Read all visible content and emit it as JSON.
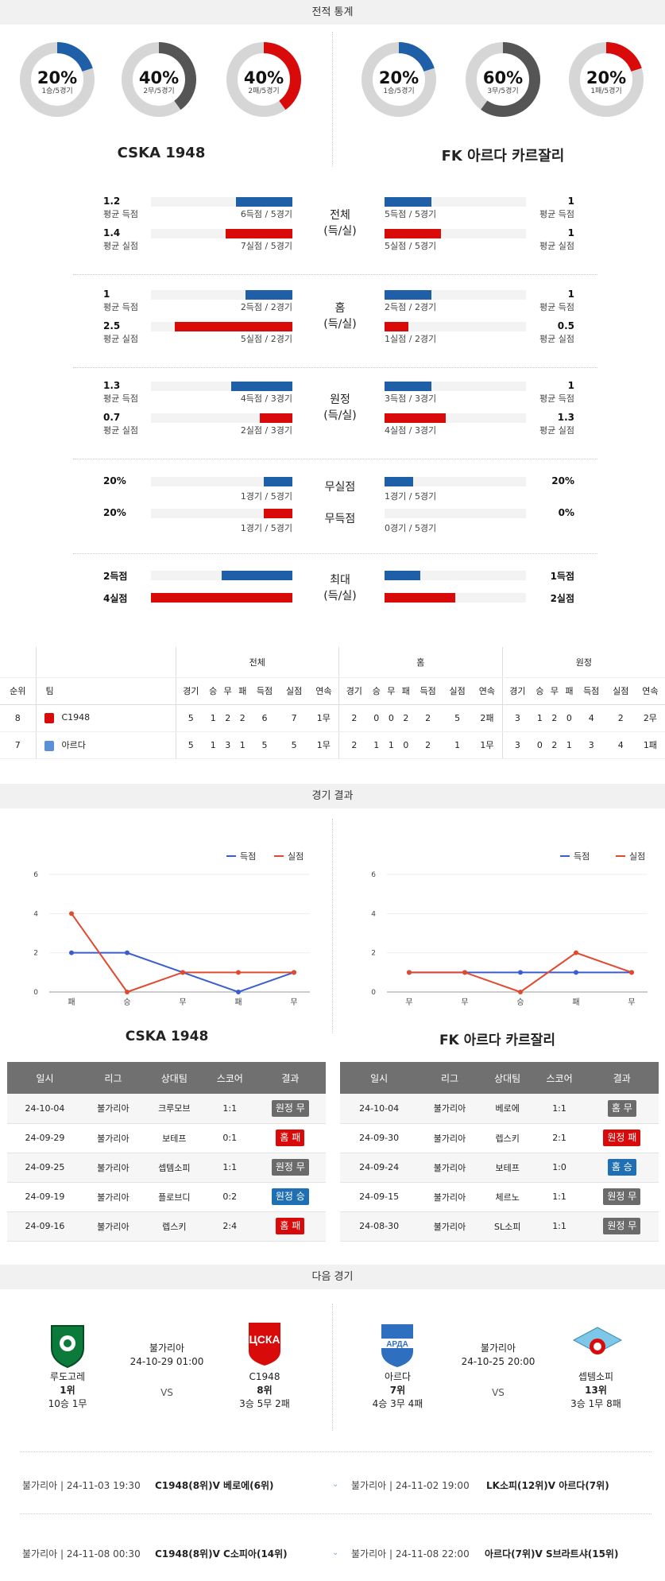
{
  "sections": {
    "stats": "전적 통계",
    "results": "경기 결과",
    "next": "다음 경기"
  },
  "rings": {
    "left": [
      {
        "pct": "20%",
        "sub": "1승/5경기",
        "value": 0.2,
        "color": "#1f5fa8"
      },
      {
        "pct": "40%",
        "sub": "2무/5경기",
        "value": 0.4,
        "color": "#555555"
      },
      {
        "pct": "40%",
        "sub": "2패/5경기",
        "value": 0.4,
        "color": "#d90a0a"
      }
    ],
    "right": [
      {
        "pct": "20%",
        "sub": "1승/5경기",
        "value": 0.2,
        "color": "#1f5fa8"
      },
      {
        "pct": "60%",
        "sub": "3무/5경기",
        "value": 0.6,
        "color": "#555555"
      },
      {
        "pct": "20%",
        "sub": "1패/5경기",
        "value": 0.2,
        "color": "#d90a0a"
      }
    ]
  },
  "teams": {
    "home": "CSKA 1948",
    "away": "FK 아르다 카르잘리"
  },
  "stat_groups": [
    {
      "cat1": "전체",
      "cat2": "(득/실)",
      "rows": [
        {
          "lv": "1.2",
          "ll": "평균 득점",
          "lsub": "6득점 / 5경기",
          "lfrac": 0.4,
          "rv": "1",
          "rl": "평균 득점",
          "rsub": "5득점 / 5경기",
          "rfrac": 0.33,
          "color": "blue"
        },
        {
          "lv": "1.4",
          "ll": "평균 실점",
          "lsub": "7실점 / 5경기",
          "lfrac": 0.47,
          "rv": "1",
          "rl": "평균 실점",
          "rsub": "5실점 / 5경기",
          "rfrac": 0.4,
          "color": "red"
        }
      ]
    },
    {
      "cat1": "홈",
      "cat2": "(득/실)",
      "rows": [
        {
          "lv": "1",
          "ll": "평균 득점",
          "lsub": "2득점 / 2경기",
          "lfrac": 0.33,
          "rv": "1",
          "rl": "평균 득점",
          "rsub": "2득점 / 2경기",
          "rfrac": 0.33,
          "color": "blue"
        },
        {
          "lv": "2.5",
          "ll": "평균 실점",
          "lsub": "5실점 / 2경기",
          "lfrac": 0.83,
          "rv": "0.5",
          "rl": "평균 실점",
          "rsub": "1실점 / 2경기",
          "rfrac": 0.17,
          "color": "red"
        }
      ]
    },
    {
      "cat1": "원정",
      "cat2": "(득/실)",
      "rows": [
        {
          "lv": "1.3",
          "ll": "평균 득점",
          "lsub": "4득점 / 3경기",
          "lfrac": 0.43,
          "rv": "1",
          "rl": "평균 득점",
          "rsub": "3득점 / 3경기",
          "rfrac": 0.33,
          "color": "blue"
        },
        {
          "lv": "0.7",
          "ll": "평균 실점",
          "lsub": "2실점 / 3경기",
          "lfrac": 0.23,
          "rv": "1.3",
          "rl": "평균 실점",
          "rsub": "4실점 / 3경기",
          "rfrac": 0.43,
          "color": "red"
        }
      ]
    }
  ],
  "clean": {
    "rows": [
      {
        "cat": "무실점",
        "lv": "20%",
        "lsub": "1경기 / 5경기",
        "lfrac": 0.2,
        "rv": "20%",
        "rsub": "1경기 / 5경기",
        "rfrac": 0.2,
        "color": "blue"
      },
      {
        "cat": "무득점",
        "lv": "20%",
        "lsub": "1경기 / 5경기",
        "lfrac": 0.2,
        "rv": "0%",
        "rsub": "0경기 / 5경기",
        "rfrac": 0,
        "color": "red"
      }
    ]
  },
  "maxg": {
    "cat1": "최대",
    "cat2": "(득/실)",
    "rows": [
      {
        "lv": "2득점",
        "lfrac": 0.5,
        "rv": "1득점",
        "rfrac": 0.25,
        "color": "blue"
      },
      {
        "lv": "4실점",
        "lfrac": 1.0,
        "rv": "2실점",
        "rfrac": 0.5,
        "color": "red"
      }
    ]
  },
  "standings": {
    "groups": [
      "전체",
      "홈",
      "원정"
    ],
    "headers": [
      "순위",
      "팀"
    ],
    "cols": [
      "경기",
      "승",
      "무",
      "패",
      "득점",
      "실점",
      "연속"
    ],
    "rows": [
      {
        "rank": "8",
        "team": "C1948",
        "all": [
          "5",
          "1",
          "2",
          "2",
          "6",
          "7",
          "1무"
        ],
        "home": [
          "2",
          "0",
          "0",
          "2",
          "2",
          "5",
          "2패"
        ],
        "away": [
          "3",
          "1",
          "2",
          "0",
          "4",
          "2",
          "2무"
        ]
      },
      {
        "rank": "7",
        "team": "아르다",
        "all": [
          "5",
          "1",
          "3",
          "1",
          "5",
          "5",
          "1무"
        ],
        "home": [
          "2",
          "1",
          "1",
          "0",
          "2",
          "1",
          "1무"
        ],
        "away": [
          "3",
          "0",
          "2",
          "1",
          "3",
          "4",
          "1패"
        ]
      }
    ]
  },
  "chart_data": [
    {
      "type": "line",
      "categories": [
        "패",
        "승",
        "무",
        "패",
        "무"
      ],
      "ylim": [
        0,
        6
      ],
      "yticks": [
        "0",
        "2",
        "4",
        "6"
      ],
      "series": [
        {
          "name": "득점",
          "values": [
            2,
            2,
            1,
            0,
            1
          ],
          "color": "#3a5fcd"
        },
        {
          "name": "실점",
          "values": [
            4,
            0,
            1,
            1,
            1
          ],
          "color": "#e04a2f"
        }
      ]
    },
    {
      "type": "line",
      "categories": [
        "무",
        "무",
        "승",
        "패",
        "무"
      ],
      "ylim": [
        0,
        6
      ],
      "yticks": [
        "0",
        "2",
        "4",
        "6"
      ],
      "series": [
        {
          "name": "득점",
          "values": [
            1,
            1,
            1,
            1,
            1
          ],
          "color": "#3a5fcd"
        },
        {
          "name": "실점",
          "values": [
            1,
            1,
            0,
            2,
            1
          ],
          "color": "#e04a2f"
        }
      ]
    }
  ],
  "results": {
    "headers": [
      "일시",
      "리그",
      "상대팀",
      "스코어",
      "결과"
    ],
    "left": [
      {
        "date": "24-10-04",
        "league": "불가리아",
        "opp": "크루모브",
        "score": "1:1",
        "res": "원정 무",
        "c": "#6b6b6b"
      },
      {
        "date": "24-09-29",
        "league": "불가리아",
        "opp": "보테프",
        "score": "0:1",
        "res": "홈 패",
        "c": "#d90a0a"
      },
      {
        "date": "24-09-25",
        "league": "불가리아",
        "opp": "셉템소피",
        "score": "1:1",
        "res": "원정 무",
        "c": "#6b6b6b"
      },
      {
        "date": "24-09-19",
        "league": "불가리아",
        "opp": "플로브디",
        "score": "0:2",
        "res": "원정 승",
        "c": "#1f6fb5"
      },
      {
        "date": "24-09-16",
        "league": "불가리아",
        "opp": "렙스키",
        "score": "2:4",
        "res": "홈 패",
        "c": "#d90a0a"
      }
    ],
    "right": [
      {
        "date": "24-10-04",
        "league": "불가리아",
        "opp": "베로에",
        "score": "1:1",
        "res": "홈 무",
        "c": "#6b6b6b"
      },
      {
        "date": "24-09-30",
        "league": "불가리아",
        "opp": "렙스키",
        "score": "2:1",
        "res": "원정 패",
        "c": "#d90a0a"
      },
      {
        "date": "24-09-24",
        "league": "불가리아",
        "opp": "보테프",
        "score": "1:0",
        "res": "홈 승",
        "c": "#1f6fb5"
      },
      {
        "date": "24-09-15",
        "league": "불가리아",
        "opp": "체르노",
        "score": "1:1",
        "res": "원정 무",
        "c": "#6b6b6b"
      },
      {
        "date": "24-08-30",
        "league": "불가리아",
        "opp": "SL소피",
        "score": "1:1",
        "res": "원정 무",
        "c": "#6b6b6b"
      }
    ]
  },
  "next": {
    "left": {
      "a": {
        "name": "루도고레",
        "rank": "1위",
        "rec": "10승 1무"
      },
      "league": "불가리아",
      "dt": "24-10-29 01:00",
      "vs": "VS",
      "b": {
        "name": "C1948",
        "rank": "8위",
        "rec": "3승 5무 2패"
      }
    },
    "right": {
      "a": {
        "name": "아르다",
        "rank": "7위",
        "rec": "4승 3무 4패"
      },
      "league": "불가리아",
      "dt": "24-10-25 20:00",
      "vs": "VS",
      "b": {
        "name": "셉템소피",
        "rank": "13위",
        "rec": "3승 1무 8패"
      }
    }
  },
  "upcoming": [
    {
      "left": {
        "info": "불가리아 | 24-11-03 19:30",
        "teams": "C1948(8위)V  베로에(6위)"
      },
      "right": {
        "info": "불가리아 | 24-11-02 19:00",
        "teams": "LK소피(12위)V  아르다(7위)"
      }
    },
    {
      "left": {
        "info": "불가리아 | 24-11-08 00:30",
        "teams": "C1948(8위)V  C소피아(14위)"
      },
      "right": {
        "info": "불가리아 | 24-11-08 22:00",
        "teams": "아르다(7위)V  S브라트샤(15위)"
      }
    }
  ]
}
